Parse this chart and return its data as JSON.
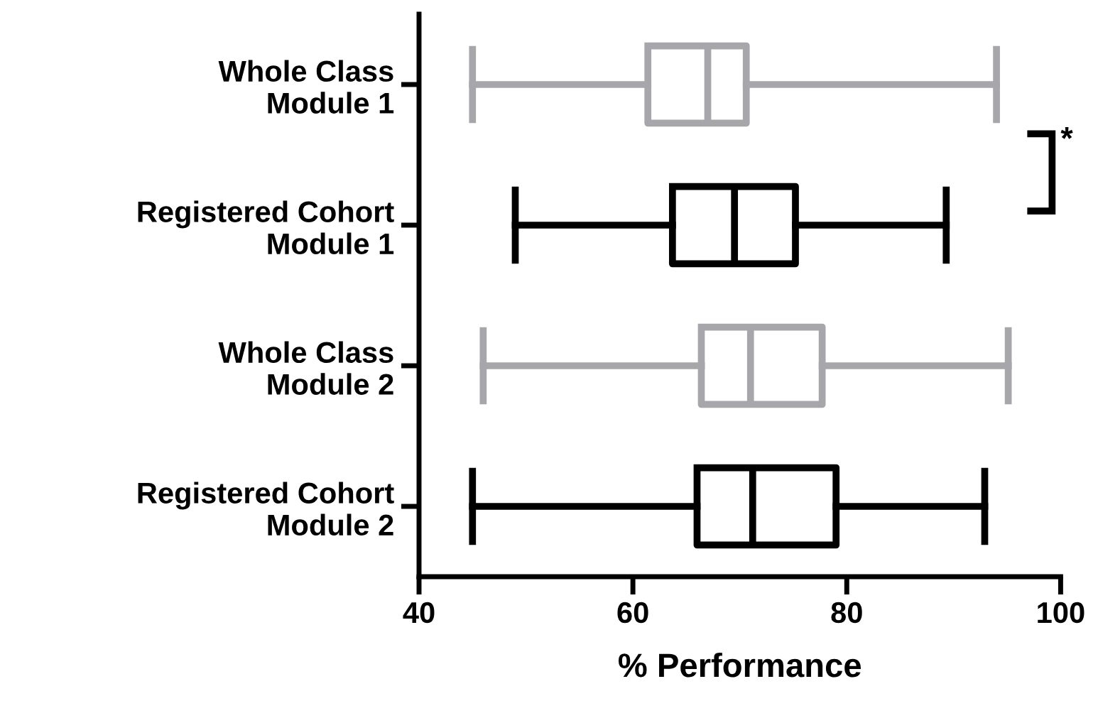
{
  "chart_data": {
    "type": "box",
    "orientation": "horizontal",
    "xlabel": "% Performance",
    "categories": [
      "Whole Class\nModule 1",
      "Registered Cohort\nModule 1",
      "Whole Class\nModule 2",
      "Registered Cohort\nModule 2"
    ],
    "colors": [
      "#a7a6aa",
      "#000000",
      "#a7a6aa",
      "#000000"
    ],
    "boxes": [
      {
        "low": 45,
        "q1": 61.4,
        "median": 67.0,
        "q3": 70.6,
        "high": 94.0
      },
      {
        "low": 49,
        "q1": 63.7,
        "median": 69.5,
        "q3": 75.2,
        "high": 89.3
      },
      {
        "low": 46,
        "q1": 66.4,
        "median": 71.0,
        "q3": 77.7,
        "high": 95.1
      },
      {
        "low": 45,
        "q1": 66.0,
        "median": 71.2,
        "q3": 79.0,
        "high": 92.9
      }
    ],
    "xlim": [
      40,
      100
    ],
    "xticks": [
      40,
      60,
      80,
      100
    ],
    "grid": false,
    "legend": false,
    "annotations": [
      "*"
    ]
  }
}
